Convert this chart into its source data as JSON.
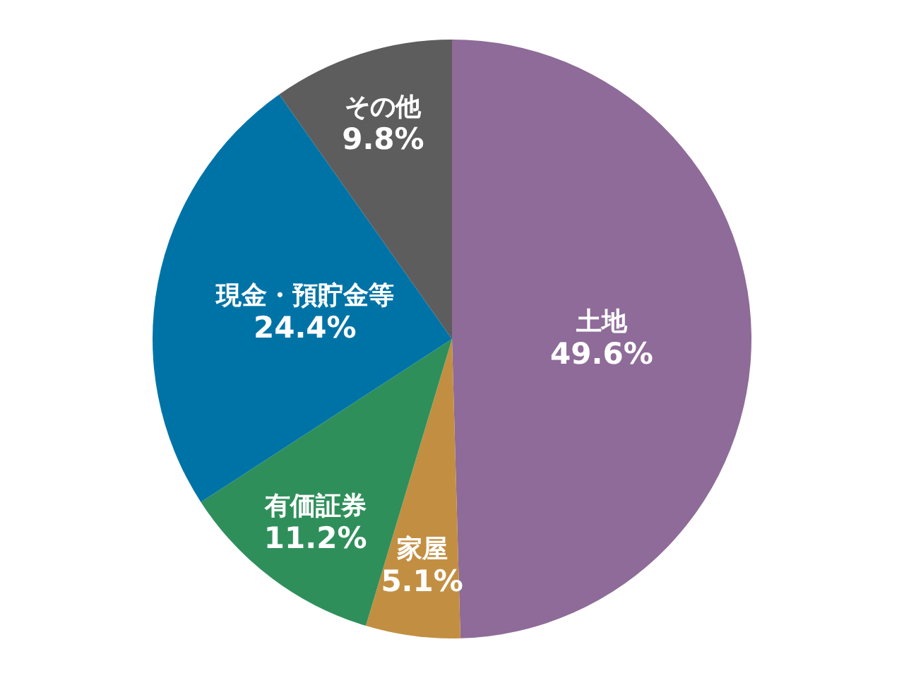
{
  "chart_data": {
    "type": "pie",
    "categories": [
      "土地",
      "家屋",
      "有価証券",
      "現金・預貯金等",
      "その他"
    ],
    "values": [
      49.6,
      5.1,
      11.2,
      24.4,
      9.8
    ],
    "value_labels": [
      "49.6%",
      "5.1%",
      "11.2%",
      "24.4%",
      "9.8%"
    ],
    "colors": [
      "#8e6b98",
      "#c28f42",
      "#2f8f5a",
      "#0073a6",
      "#5d5d5d"
    ]
  }
}
